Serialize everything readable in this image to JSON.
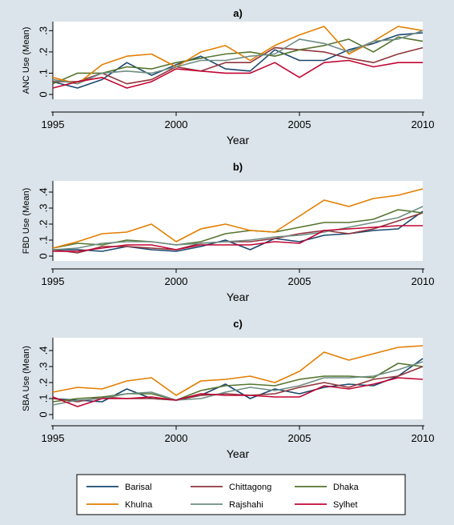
{
  "chart_data": [
    {
      "type": "line",
      "title": "a)",
      "xlabel": "Year",
      "ylabel": "ANC Use (Mean)",
      "x": [
        1995,
        1996,
        1997,
        1998,
        1999,
        2000,
        2001,
        2002,
        2003,
        2004,
        2005,
        2006,
        2007,
        2008,
        2009,
        2010
      ],
      "xlim": [
        1995,
        2010
      ],
      "xticks": [
        "1995",
        "2000",
        "2005",
        "2010"
      ],
      "ylim": [
        0,
        0.32
      ],
      "yticks": [
        ".3",
        ".2",
        ".1",
        "0"
      ],
      "series": [
        {
          "name": "Barisal",
          "values": [
            0.06,
            0.03,
            0.07,
            0.15,
            0.09,
            0.14,
            0.18,
            0.12,
            0.11,
            0.21,
            0.16,
            0.16,
            0.21,
            0.24,
            0.28,
            0.29
          ]
        },
        {
          "name": "Chittagong",
          "values": [
            0.06,
            0.06,
            0.1,
            0.05,
            0.07,
            0.13,
            0.11,
            0.15,
            0.15,
            0.22,
            0.21,
            0.2,
            0.17,
            0.15,
            0.19,
            0.22
          ]
        },
        {
          "name": "Dhaka",
          "values": [
            0.05,
            0.1,
            0.1,
            0.13,
            0.12,
            0.15,
            0.17,
            0.19,
            0.2,
            0.18,
            0.21,
            0.23,
            0.26,
            0.2,
            0.27,
            0.25
          ]
        },
        {
          "name": "Khulna",
          "values": [
            0.08,
            0.05,
            0.14,
            0.18,
            0.19,
            0.13,
            0.2,
            0.23,
            0.16,
            0.23,
            0.28,
            0.32,
            0.19,
            0.25,
            0.32,
            0.3
          ]
        },
        {
          "name": "Rajshahi",
          "values": [
            0.07,
            0.05,
            0.1,
            0.11,
            0.1,
            0.13,
            0.16,
            0.16,
            0.18,
            0.19,
            0.26,
            0.24,
            0.2,
            0.25,
            0.26,
            0.3
          ]
        },
        {
          "name": "Sylhet",
          "values": [
            0.03,
            0.06,
            0.08,
            0.03,
            0.06,
            0.12,
            0.11,
            0.1,
            0.1,
            0.15,
            0.08,
            0.15,
            0.16,
            0.13,
            0.15,
            0.15
          ]
        }
      ]
    },
    {
      "type": "line",
      "title": "b)",
      "xlabel": "Year",
      "ylabel": "FBD Use (Mean)",
      "x": [
        1995,
        1996,
        1997,
        1998,
        1999,
        2000,
        2001,
        2002,
        2003,
        2004,
        2005,
        2006,
        2007,
        2008,
        2009,
        2010
      ],
      "xlim": [
        1995,
        2010
      ],
      "xticks": [
        "1995",
        "2000",
        "2005",
        "2010"
      ],
      "ylim": [
        0,
        0.44
      ],
      "yticks": [
        ".4",
        ".3",
        ".2",
        ".1",
        "0"
      ],
      "series": [
        {
          "name": "Barisal",
          "values": [
            0.04,
            0.04,
            0.03,
            0.06,
            0.04,
            0.03,
            0.06,
            0.1,
            0.04,
            0.11,
            0.09,
            0.13,
            0.14,
            0.16,
            0.17,
            0.28
          ]
        },
        {
          "name": "Chittagong",
          "values": [
            0.04,
            0.02,
            0.06,
            0.06,
            0.05,
            0.04,
            0.08,
            0.09,
            0.09,
            0.11,
            0.14,
            0.16,
            0.14,
            0.17,
            0.22,
            0.27
          ]
        },
        {
          "name": "Dhaka",
          "values": [
            0.05,
            0.08,
            0.07,
            0.1,
            0.09,
            0.07,
            0.09,
            0.14,
            0.16,
            0.15,
            0.18,
            0.21,
            0.21,
            0.23,
            0.29,
            0.27
          ]
        },
        {
          "name": "Khulna",
          "values": [
            0.05,
            0.09,
            0.14,
            0.15,
            0.2,
            0.09,
            0.17,
            0.2,
            0.16,
            0.15,
            0.25,
            0.35,
            0.31,
            0.36,
            0.38,
            0.42
          ]
        },
        {
          "name": "Rajshahi",
          "values": [
            0.04,
            0.05,
            0.08,
            0.09,
            0.09,
            0.07,
            0.08,
            0.09,
            0.1,
            0.12,
            0.13,
            0.15,
            0.18,
            0.21,
            0.24,
            0.31
          ]
        },
        {
          "name": "Sylhet",
          "values": [
            0.03,
            0.03,
            0.05,
            0.07,
            0.07,
            0.04,
            0.07,
            0.07,
            0.07,
            0.09,
            0.08,
            0.16,
            0.17,
            0.18,
            0.19,
            0.19
          ]
        }
      ]
    },
    {
      "type": "line",
      "title": "c)",
      "xlabel": "Year",
      "ylabel": "SBA Use (Mean)",
      "x": [
        1995,
        1996,
        1997,
        1998,
        1999,
        2000,
        2001,
        2002,
        2003,
        2004,
        2005,
        2006,
        2007,
        2008,
        2009,
        2010
      ],
      "xlim": [
        1995,
        2010
      ],
      "xticks": [
        "1995",
        "2000",
        "2005",
        "2010"
      ],
      "ylim": [
        0,
        0.45
      ],
      "yticks": [
        ".4",
        ".3",
        ".2",
        ".1",
        "0"
      ],
      "series": [
        {
          "name": "Barisal",
          "values": [
            0.1,
            0.09,
            0.08,
            0.16,
            0.1,
            0.09,
            0.12,
            0.19,
            0.1,
            0.16,
            0.13,
            0.17,
            0.19,
            0.18,
            0.24,
            0.35
          ]
        },
        {
          "name": "Chittagong",
          "values": [
            0.1,
            0.08,
            0.11,
            0.1,
            0.1,
            0.09,
            0.12,
            0.13,
            0.12,
            0.13,
            0.17,
            0.2,
            0.17,
            0.22,
            0.24,
            0.3
          ]
        },
        {
          "name": "Dhaka",
          "values": [
            0.08,
            0.1,
            0.11,
            0.13,
            0.13,
            0.09,
            0.15,
            0.18,
            0.19,
            0.18,
            0.22,
            0.24,
            0.24,
            0.23,
            0.32,
            0.3
          ]
        },
        {
          "name": "Khulna",
          "values": [
            0.14,
            0.17,
            0.16,
            0.21,
            0.23,
            0.12,
            0.21,
            0.22,
            0.24,
            0.2,
            0.27,
            0.39,
            0.34,
            0.38,
            0.42,
            0.43
          ]
        },
        {
          "name": "Rajshahi",
          "values": [
            0.06,
            0.09,
            0.1,
            0.13,
            0.14,
            0.09,
            0.1,
            0.14,
            0.17,
            0.15,
            0.18,
            0.23,
            0.23,
            0.24,
            0.28,
            0.33
          ]
        },
        {
          "name": "Sylhet",
          "values": [
            0.11,
            0.05,
            0.1,
            0.1,
            0.11,
            0.09,
            0.13,
            0.12,
            0.12,
            0.11,
            0.11,
            0.18,
            0.16,
            0.19,
            0.23,
            0.22
          ]
        }
      ]
    }
  ],
  "legend": {
    "placement": "bottom",
    "items": [
      {
        "name": "Barisal",
        "color": "#1a476f"
      },
      {
        "name": "Chittagong",
        "color": "#90353b"
      },
      {
        "name": "Dhaka",
        "color": "#55752f"
      },
      {
        "name": "Khulna",
        "color": "#e37e00"
      },
      {
        "name": "Rajshahi",
        "color": "#6e8e84"
      },
      {
        "name": "Sylhet",
        "color": "#c10534"
      }
    ]
  }
}
